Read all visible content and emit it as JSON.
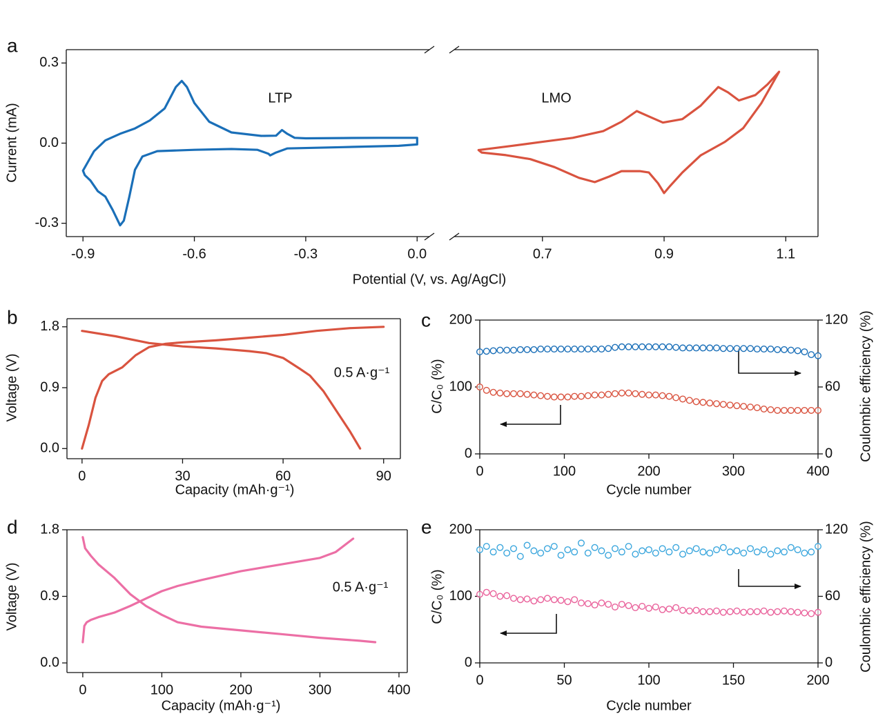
{
  "chart_data": [
    {
      "type": "line",
      "label": "a",
      "ylabel": "Current (mA)",
      "xlabel": "Potential (V, vs. Ag/AgCl)",
      "x_segments": [
        {
          "xlim": [
            -0.945,
            0.033
          ],
          "xticks": [
            -0.9,
            -0.6,
            -0.3,
            {
              "value": 0,
              "label": "0.0"
            }
          ]
        },
        {
          "xlim": [
            0.555,
            1.153
          ],
          "xticks": [
            0.7,
            0.9,
            1.1
          ]
        }
      ],
      "ylim": [
        -0.35,
        0.35
      ],
      "yticks": [
        -0.3,
        {
          "value": 0,
          "label": "0.0"
        },
        0.3
      ],
      "series": [
        {
          "name": "LTP",
          "color": "#1a6fb8",
          "segment": 0,
          "x": [
            0.0,
            -0.1,
            -0.2,
            -0.3,
            -0.33,
            -0.35,
            -0.364,
            -0.38,
            -0.42,
            -0.5,
            -0.56,
            -0.6,
            -0.62,
            -0.634,
            -0.65,
            -0.68,
            -0.72,
            -0.76,
            -0.8,
            -0.84,
            -0.87,
            -0.9,
            -0.895,
            -0.88,
            -0.86,
            -0.84,
            -0.82,
            -0.8,
            -0.79,
            -0.775,
            -0.76,
            -0.74,
            -0.7,
            -0.6,
            -0.5,
            -0.43,
            -0.4,
            -0.396,
            -0.38,
            -0.35,
            -0.2,
            -0.05,
            0.0,
            0.0
          ],
          "values": [
            0.02,
            0.02,
            0.019,
            0.018,
            0.02,
            0.035,
            0.049,
            0.028,
            0.027,
            0.04,
            0.08,
            0.15,
            0.21,
            0.233,
            0.21,
            0.13,
            0.085,
            0.055,
            0.035,
            0.01,
            -0.03,
            -0.103,
            -0.12,
            -0.14,
            -0.18,
            -0.2,
            -0.25,
            -0.308,
            -0.29,
            -0.2,
            -0.1,
            -0.05,
            -0.03,
            -0.025,
            -0.022,
            -0.025,
            -0.04,
            -0.046,
            -0.035,
            -0.02,
            -0.015,
            -0.01,
            -0.005,
            0.02
          ]
        },
        {
          "name": "LMO",
          "color": "#d9533f",
          "segment": 1,
          "x": [
            0.595,
            0.65,
            0.7,
            0.75,
            0.8,
            0.83,
            0.855,
            0.875,
            0.898,
            0.93,
            0.96,
            0.989,
            1.005,
            1.023,
            1.05,
            1.07,
            1.089,
            1.06,
            1.03,
            1.0,
            0.96,
            0.93,
            0.91,
            0.9,
            0.89,
            0.875,
            0.86,
            0.83,
            0.81,
            0.786,
            0.76,
            0.72,
            0.68,
            0.64,
            0.6,
            0.595
          ],
          "values": [
            -0.026,
            -0.01,
            0.005,
            0.02,
            0.045,
            0.08,
            0.12,
            0.1,
            0.077,
            0.09,
            0.14,
            0.21,
            0.19,
            0.16,
            0.18,
            0.22,
            0.267,
            0.15,
            0.056,
            0.005,
            -0.046,
            -0.11,
            -0.16,
            -0.187,
            -0.15,
            -0.11,
            -0.105,
            -0.105,
            -0.125,
            -0.146,
            -0.13,
            -0.09,
            -0.06,
            -0.045,
            -0.035,
            -0.026
          ]
        }
      ]
    },
    {
      "type": "line",
      "label": "b",
      "ylabel": "Voltage (V)",
      "xlabel": "Capacity (mAh·g⁻¹)",
      "annotation": "0.5 A·g⁻¹",
      "xlim": [
        -4.5,
        95
      ],
      "xticks": [
        0,
        30,
        60,
        90
      ],
      "ylim": [
        -0.15,
        1.92
      ],
      "yticks": [
        {
          "value": 0,
          "label": "0.0"
        },
        0.9,
        1.8
      ],
      "series": [
        {
          "color": "#d9533f",
          "x": [
            0,
            2,
            4,
            6,
            8,
            12,
            16,
            20,
            25,
            30,
            40,
            50,
            60,
            70,
            80,
            90
          ],
          "values": [
            0,
            0.35,
            0.75,
            1.0,
            1.1,
            1.2,
            1.38,
            1.5,
            1.55,
            1.57,
            1.6,
            1.64,
            1.68,
            1.74,
            1.78,
            1.8
          ]
        },
        {
          "color": "#d9533f",
          "x": [
            0,
            10,
            20,
            30,
            40,
            50,
            55,
            60,
            65,
            68,
            72,
            76,
            80,
            83
          ],
          "values": [
            1.74,
            1.66,
            1.56,
            1.51,
            1.48,
            1.44,
            1.41,
            1.34,
            1.18,
            1.08,
            0.85,
            0.55,
            0.25,
            0
          ]
        }
      ]
    },
    {
      "type": "scatter",
      "label": "c",
      "ylabel": "C/C₀ (%)",
      "y2label": "Coulombic efficiency (%)",
      "xlabel": "Cycle number",
      "xlim": [
        0,
        400
      ],
      "xticks": [
        0,
        100,
        200,
        300,
        400
      ],
      "ylim": [
        0,
        200
      ],
      "yticks": [
        0,
        100,
        200
      ],
      "y2lim": [
        0,
        120
      ],
      "y2ticks": [
        0,
        60,
        120
      ],
      "x": [
        0,
        8,
        16,
        24,
        32,
        40,
        48,
        56,
        64,
        72,
        80,
        88,
        96,
        104,
        112,
        120,
        128,
        136,
        144,
        152,
        160,
        168,
        176,
        184,
        192,
        200,
        208,
        216,
        224,
        232,
        240,
        248,
        256,
        264,
        272,
        280,
        288,
        296,
        304,
        312,
        320,
        328,
        336,
        344,
        352,
        360,
        368,
        376,
        384,
        392,
        400
      ],
      "series": [
        {
          "color": "#d9533f",
          "values": [
            100,
            95,
            92,
            91,
            90,
            90,
            90,
            89,
            88,
            87,
            86,
            85,
            85,
            85,
            86,
            86,
            87,
            88,
            88,
            89,
            90,
            91,
            91,
            90,
            89,
            88,
            88,
            87,
            86,
            84,
            82,
            80,
            78,
            77,
            76,
            75,
            74,
            73,
            72,
            71,
            70,
            69,
            67,
            66,
            65,
            65,
            65,
            65,
            65,
            65,
            65
          ]
        },
        {
          "color": "#1a6fb8",
          "axis": "y2",
          "values": [
            91.5,
            92,
            92.5,
            93,
            93,
            93,
            93.5,
            93.5,
            93.5,
            94,
            94,
            94,
            94,
            94,
            94,
            94,
            94,
            94,
            94,
            94.5,
            95.5,
            96,
            96,
            96,
            96,
            96,
            96,
            96,
            96,
            95.5,
            95,
            95,
            95,
            95,
            95,
            95,
            94.5,
            94.5,
            94.5,
            94.5,
            94.5,
            94,
            94,
            94,
            93.5,
            93.5,
            93,
            92.5,
            91.5,
            89,
            88
          ]
        }
      ]
    },
    {
      "type": "line",
      "label": "d",
      "ylabel": "Voltage (V)",
      "xlabel": "Capacity (mAh·g⁻¹)",
      "annotation": "0.5 A·g⁻¹",
      "xlim": [
        -20,
        410.5
      ],
      "xticks": [
        0,
        100,
        200,
        300,
        400
      ],
      "ylim": [
        -0.13,
        1.8
      ],
      "yticks": [
        {
          "value": 0,
          "label": "0.0"
        },
        0.9,
        1.8
      ],
      "series": [
        {
          "color": "#ec6fa5",
          "x": [
            0,
            2,
            5,
            10,
            20,
            40,
            60,
            80,
            100,
            120,
            150,
            200,
            250,
            300,
            320,
            342
          ],
          "values": [
            0.28,
            0.5,
            0.55,
            0.58,
            0.62,
            0.68,
            0.77,
            0.87,
            0.97,
            1.04,
            1.12,
            1.24,
            1.33,
            1.42,
            1.5,
            1.68
          ]
        },
        {
          "color": "#ec6fa5",
          "x": [
            0,
            3,
            10,
            20,
            40,
            60,
            80,
            100,
            120,
            150,
            200,
            250,
            300,
            350,
            370
          ],
          "values": [
            1.7,
            1.55,
            1.45,
            1.33,
            1.15,
            0.93,
            0.77,
            0.65,
            0.55,
            0.49,
            0.44,
            0.39,
            0.34,
            0.3,
            0.28
          ]
        }
      ]
    },
    {
      "type": "scatter",
      "label": "e",
      "ylabel": "C/C₀ (%)",
      "y2label": "Coulombic efficiency (%)",
      "xlabel": "Cycle number",
      "xlim": [
        0,
        200
      ],
      "xticks": [
        0,
        50,
        100,
        150,
        200
      ],
      "ylim": [
        0,
        200
      ],
      "yticks": [
        0,
        100,
        200
      ],
      "y2lim": [
        0,
        120
      ],
      "y2ticks": [
        0,
        60,
        120
      ],
      "x": [
        0,
        4,
        8,
        12,
        16,
        20,
        24,
        28,
        32,
        36,
        40,
        44,
        48,
        52,
        56,
        60,
        64,
        68,
        72,
        76,
        80,
        84,
        88,
        92,
        96,
        100,
        104,
        108,
        112,
        116,
        120,
        124,
        128,
        132,
        136,
        140,
        144,
        148,
        152,
        156,
        160,
        164,
        168,
        172,
        176,
        180,
        184,
        188,
        192,
        196,
        200
      ],
      "series": [
        {
          "color": "#e9609a",
          "values": [
            103,
            106,
            104,
            100,
            101,
            97,
            95,
            96,
            93,
            95,
            97,
            95,
            94,
            92,
            95,
            90,
            89,
            87,
            90,
            88,
            84,
            88,
            86,
            83,
            85,
            82,
            84,
            80,
            81,
            83,
            79,
            78,
            79,
            77,
            77,
            78,
            76,
            77,
            78,
            76,
            77,
            77,
            78,
            76,
            77,
            78,
            77,
            76,
            75,
            74,
            76
          ]
        },
        {
          "color": "#3aa6dd",
          "axis": "y2",
          "values": [
            102,
            105,
            100,
            104,
            99,
            103,
            96,
            106,
            101,
            99,
            103,
            105,
            97,
            102,
            100,
            108,
            99,
            104,
            101,
            97,
            103,
            100,
            105,
            98,
            101,
            102,
            99,
            103,
            100,
            104,
            98,
            101,
            103,
            100,
            99,
            102,
            104,
            100,
            101,
            99,
            103,
            100,
            102,
            98,
            101,
            100,
            104,
            102,
            99,
            100,
            105
          ]
        }
      ]
    }
  ]
}
